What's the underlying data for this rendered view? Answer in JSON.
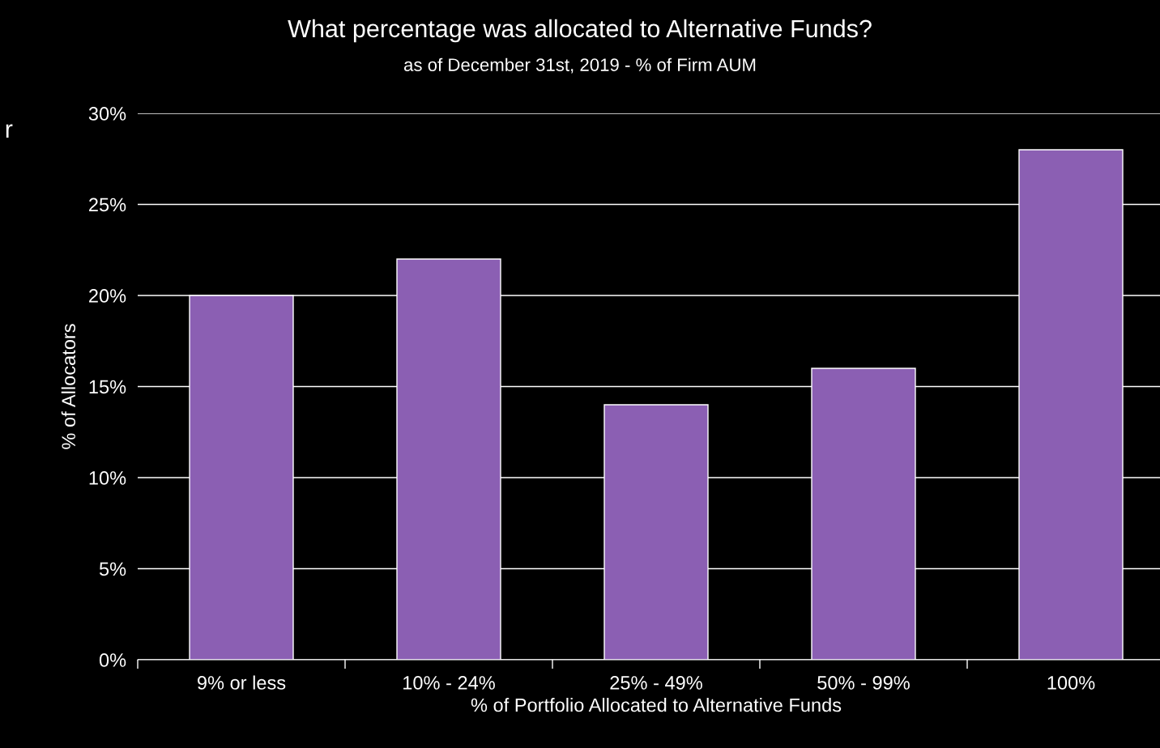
{
  "chart_data": {
    "type": "bar",
    "title": "What percentage was allocated to Alternative Funds?",
    "subtitle": "as of December 31st, 2019 - % of Firm AUM",
    "xlabel": "% of Portfolio Allocated to Alternative Funds",
    "ylabel": "% of Allocators",
    "categories": [
      "9% or less",
      "10% - 24%",
      "25% - 49%",
      "50% - 99%",
      "100%"
    ],
    "values": [
      20,
      22,
      14,
      16,
      28
    ],
    "color": "#8b5fb3",
    "ylim": [
      0,
      30
    ],
    "yticks": [
      {
        "value": 0,
        "label": "0%"
      },
      {
        "value": 5,
        "label": "5%"
      },
      {
        "value": 10,
        "label": "10%"
      },
      {
        "value": 15,
        "label": "15%"
      },
      {
        "value": 20,
        "label": "20%"
      },
      {
        "value": 25,
        "label": "25%"
      },
      {
        "value": 30,
        "label": "30%"
      }
    ],
    "grid": "y",
    "annotations": [
      "r"
    ]
  }
}
